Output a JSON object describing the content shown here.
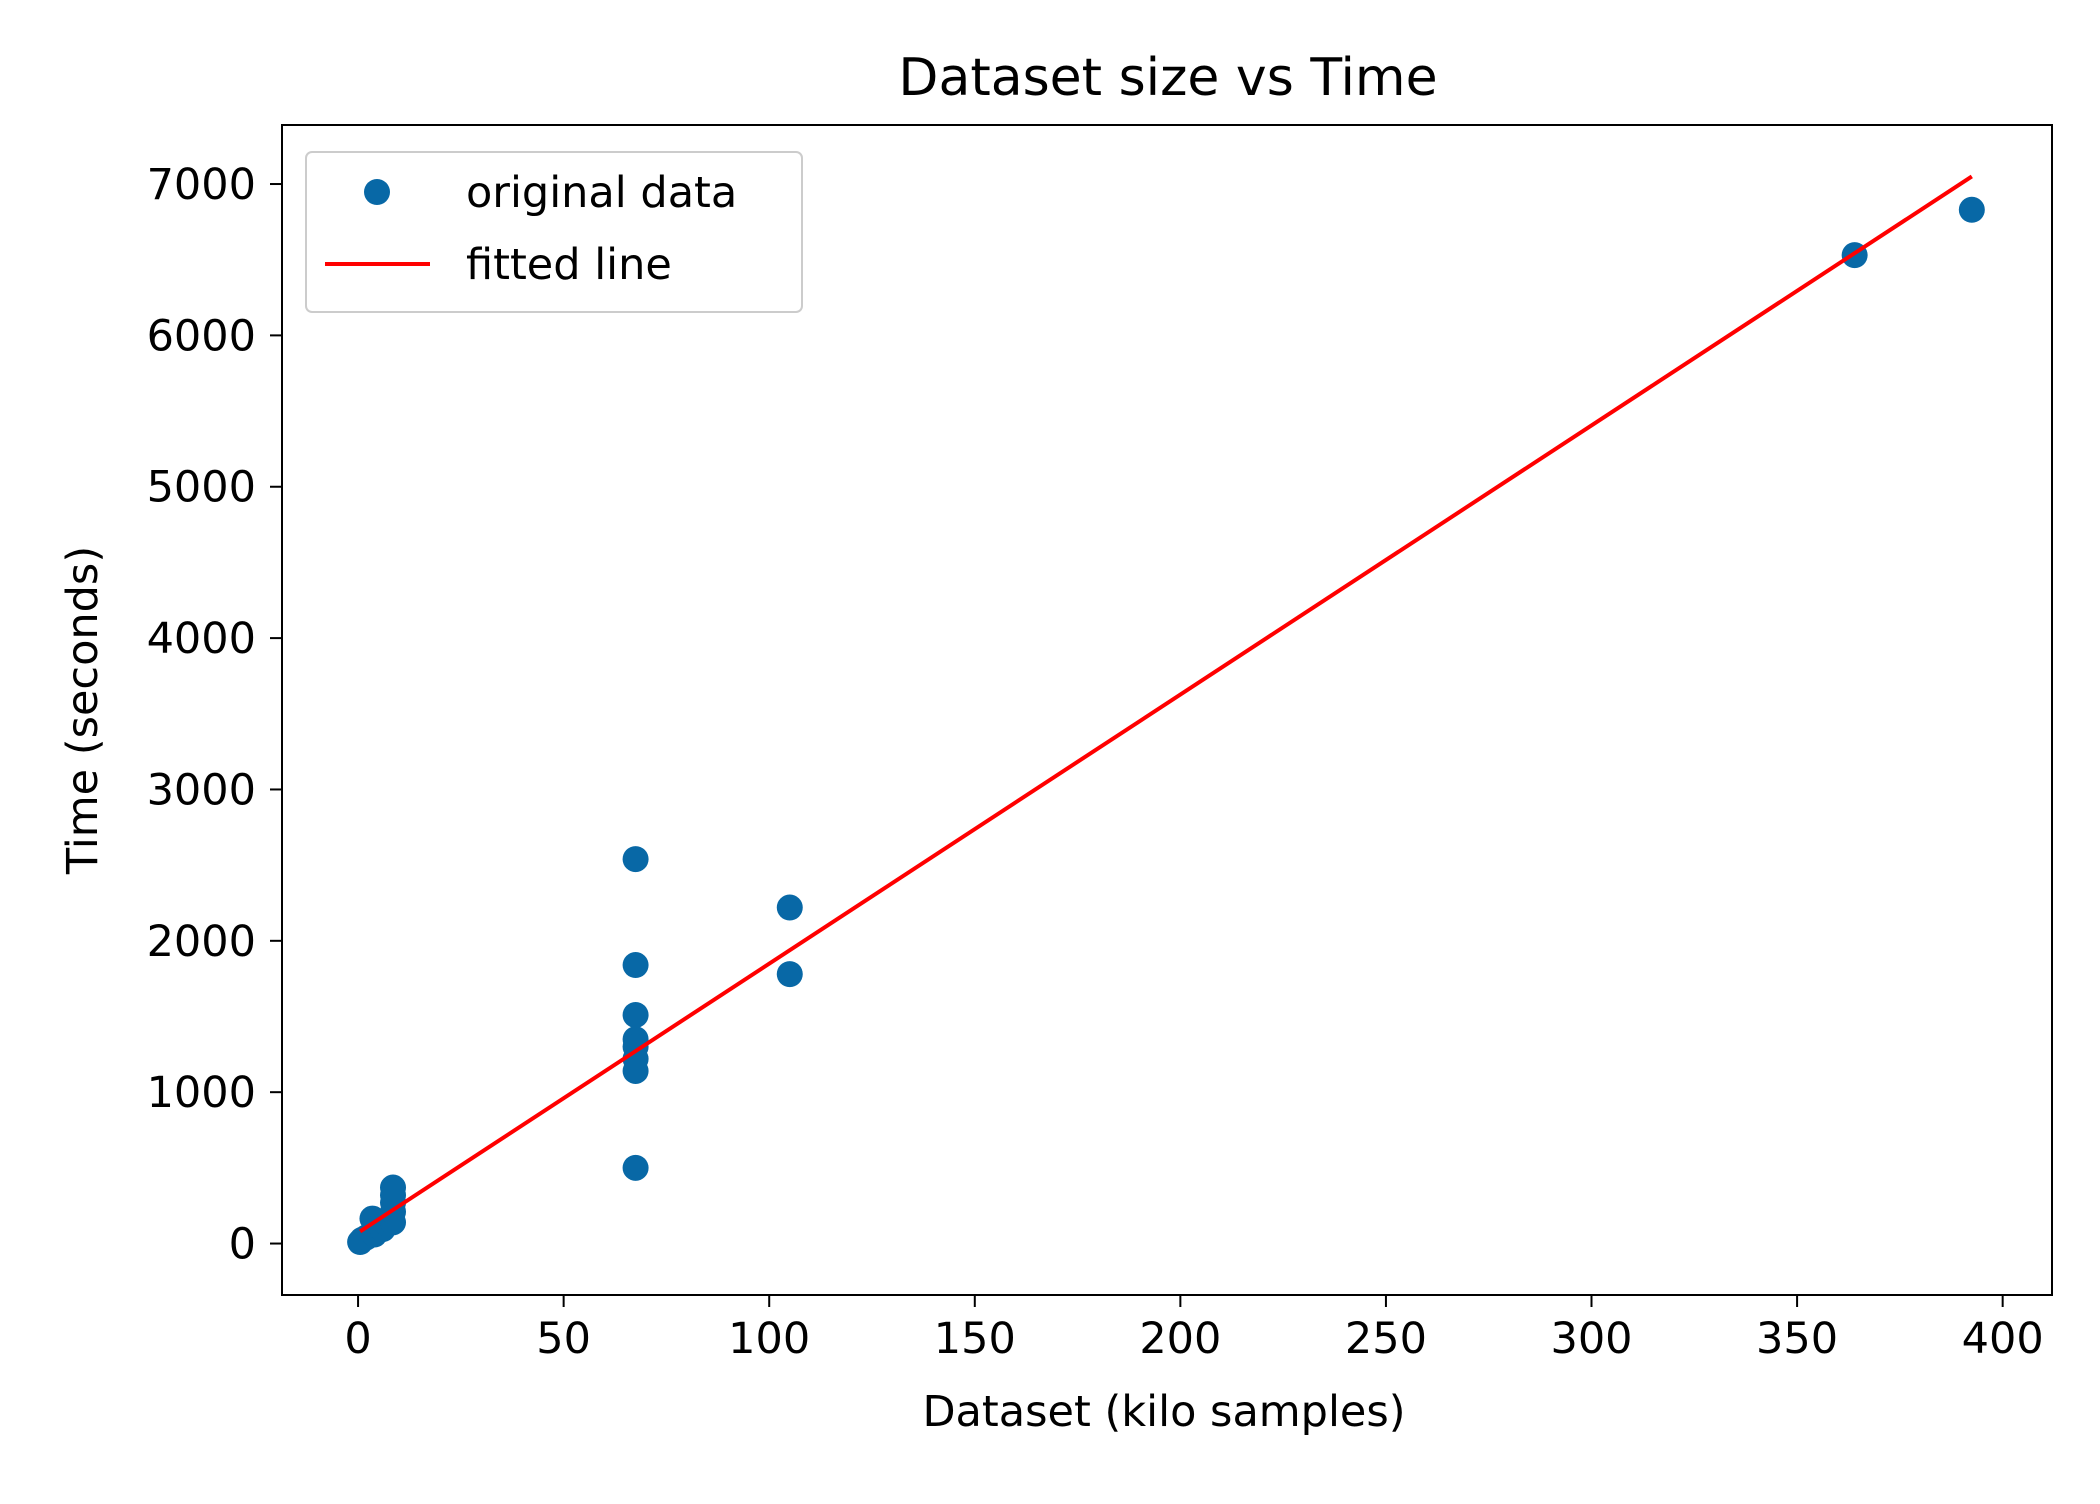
{
  "chart_data": {
    "type": "scatter",
    "title": "Dataset size vs Time",
    "xlabel": "Dataset (kilo samples)",
    "ylabel": "Time (seconds)",
    "xlim": [
      -18.5,
      412
    ],
    "ylim": [
      -340,
      7390
    ],
    "xticks": [
      0,
      50,
      100,
      150,
      200,
      250,
      300,
      350,
      400
    ],
    "yticks": [
      0,
      1000,
      2000,
      3000,
      4000,
      5000,
      6000,
      7000
    ],
    "grid": false,
    "legend_position": "top-left",
    "series": [
      {
        "name": "original data",
        "kind": "points",
        "color": "#0868a6",
        "points": [
          {
            "x": 0.5,
            "y": 10
          },
          {
            "x": 1.0,
            "y": 25
          },
          {
            "x": 2.0,
            "y": 40
          },
          {
            "x": 3.5,
            "y": 165
          },
          {
            "x": 4.0,
            "y": 60
          },
          {
            "x": 5.0,
            "y": 110
          },
          {
            "x": 6.0,
            "y": 95
          },
          {
            "x": 7.0,
            "y": 130
          },
          {
            "x": 8.0,
            "y": 180
          },
          {
            "x": 8.5,
            "y": 140
          },
          {
            "x": 8.5,
            "y": 210
          },
          {
            "x": 8.5,
            "y": 270
          },
          {
            "x": 8.5,
            "y": 320
          },
          {
            "x": 8.5,
            "y": 370
          },
          {
            "x": 67.5,
            "y": 2540
          },
          {
            "x": 67.5,
            "y": 1840
          },
          {
            "x": 67.5,
            "y": 1510
          },
          {
            "x": 67.5,
            "y": 1350
          },
          {
            "x": 67.5,
            "y": 1300
          },
          {
            "x": 67.5,
            "y": 1220
          },
          {
            "x": 67.5,
            "y": 1140
          },
          {
            "x": 67.5,
            "y": 500
          },
          {
            "x": 105,
            "y": 2220
          },
          {
            "x": 105,
            "y": 1780
          },
          {
            "x": 364,
            "y": 6530
          },
          {
            "x": 392.5,
            "y": 6830
          }
        ]
      },
      {
        "name": "fitted line",
        "kind": "line",
        "color": "#ff0000",
        "points": [
          {
            "x": 0.5,
            "y": 80
          },
          {
            "x": 392.5,
            "y": 7050
          }
        ]
      }
    ]
  }
}
